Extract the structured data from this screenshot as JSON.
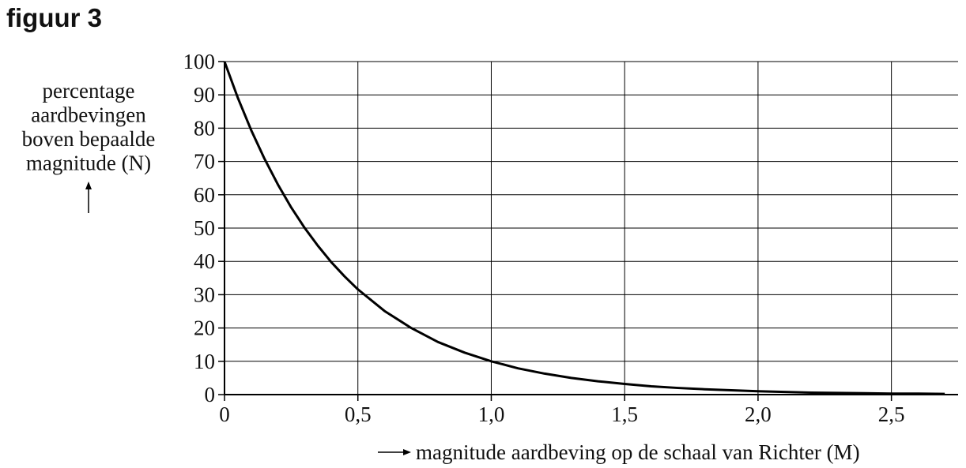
{
  "chart_data": {
    "type": "line",
    "title": "figuur 3",
    "ylabel": [
      "percentage",
      "aardbevingen",
      "boven bepaalde",
      "magnitude (N)"
    ],
    "xlabel": "magnitude aardbeving op de schaal van Richter (M)",
    "x": [
      0,
      0.05,
      0.1,
      0.15,
      0.2,
      0.25,
      0.3,
      0.35,
      0.4,
      0.45,
      0.5,
      0.6,
      0.7,
      0.8,
      0.9,
      1.0,
      1.1,
      1.2,
      1.3,
      1.4,
      1.5,
      1.6,
      1.7,
      1.8,
      1.9,
      2.0,
      2.1,
      2.2,
      2.3,
      2.4,
      2.5,
      2.6,
      2.7
    ],
    "values": [
      100,
      89.1,
      79.4,
      70.8,
      63.1,
      56.2,
      50.1,
      44.7,
      39.8,
      35.5,
      31.6,
      25.1,
      20.0,
      15.8,
      12.6,
      10.0,
      7.9,
      6.3,
      5.0,
      4.0,
      3.2,
      2.5,
      2.0,
      1.6,
      1.3,
      1.0,
      0.8,
      0.6,
      0.5,
      0.4,
      0.3,
      0.3,
      0.2
    ],
    "color": "#000000",
    "xlim": [
      0,
      2.75
    ],
    "ylim": [
      0,
      100
    ],
    "xticks": [
      0,
      {
        "value": 0.5,
        "label": "0,5"
      },
      {
        "value": 1.0,
        "label": "1,0"
      },
      {
        "value": 1.5,
        "label": "1,5"
      },
      {
        "value": 2.0,
        "label": "2,0"
      },
      {
        "value": 2.5,
        "label": "2,5"
      }
    ],
    "yticks": [
      0,
      10,
      20,
      30,
      40,
      50,
      60,
      70,
      80,
      90,
      100
    ],
    "grid": true
  }
}
